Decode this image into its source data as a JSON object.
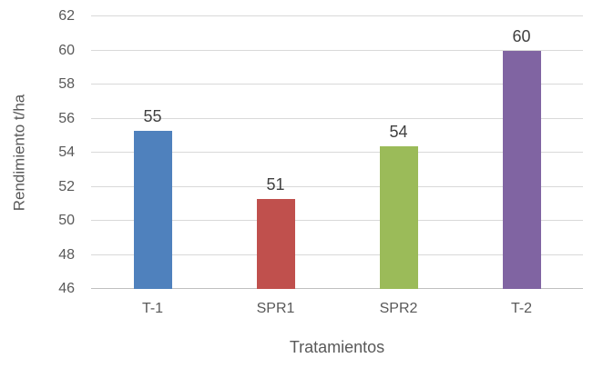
{
  "chart_data": {
    "type": "bar",
    "categories": [
      "T-1",
      "SPR1",
      "SPR2",
      "T-2"
    ],
    "values": [
      55.3,
      51.3,
      54.4,
      60
    ],
    "data_labels": [
      "55",
      "51",
      "54",
      "60"
    ],
    "bar_colors": [
      "#4F81BD",
      "#C0504D",
      "#9BBB59",
      "#8064A2"
    ],
    "title": "",
    "xlabel": "Tratamientos",
    "ylabel": "Rendimiento t/ha",
    "ylim": [
      46,
      62
    ],
    "yticks": [
      46,
      48,
      50,
      52,
      54,
      56,
      58,
      60,
      62
    ],
    "grid": "horizontal",
    "gridline_color": "#D9D9D9",
    "axis_text_color": "#595959",
    "data_label_color": "#404040",
    "legend": "none"
  }
}
